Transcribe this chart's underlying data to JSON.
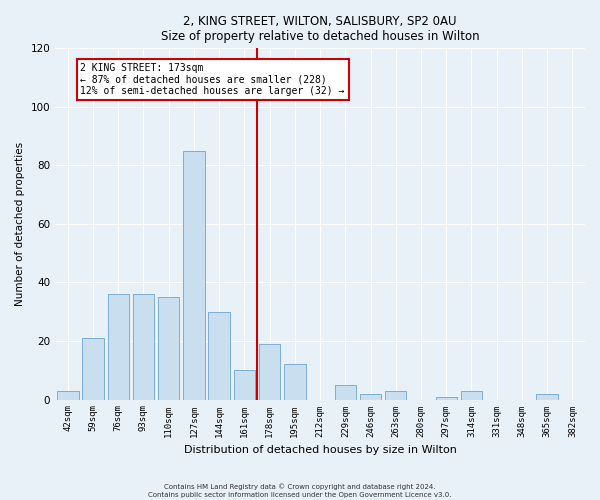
{
  "title1": "2, KING STREET, WILTON, SALISBURY, SP2 0AU",
  "title2": "Size of property relative to detached houses in Wilton",
  "xlabel": "Distribution of detached houses by size in Wilton",
  "ylabel": "Number of detached properties",
  "categories": [
    "42sqm",
    "59sqm",
    "76sqm",
    "93sqm",
    "110sqm",
    "127sqm",
    "144sqm",
    "161sqm",
    "178sqm",
    "195sqm",
    "212sqm",
    "229sqm",
    "246sqm",
    "263sqm",
    "280sqm",
    "297sqm",
    "314sqm",
    "331sqm",
    "348sqm",
    "365sqm",
    "382sqm"
  ],
  "values": [
    3,
    21,
    36,
    36,
    35,
    85,
    30,
    10,
    19,
    12,
    0,
    5,
    2,
    3,
    0,
    1,
    3,
    0,
    0,
    2,
    0
  ],
  "bar_color": "#c9dff0",
  "bar_edgecolor": "#7bafd4",
  "vline_color": "#cc0000",
  "annotation_text": "2 KING STREET: 173sqm\n← 87% of detached houses are smaller (228)\n12% of semi-detached houses are larger (32) →",
  "annotation_box_edgecolor": "#cc0000",
  "ylim": [
    0,
    120
  ],
  "yticks": [
    0,
    20,
    40,
    60,
    80,
    100,
    120
  ],
  "footnote1": "Contains HM Land Registry data © Crown copyright and database right 2024.",
  "footnote2": "Contains public sector information licensed under the Open Government Licence v3.0.",
  "bg_color": "#e8f0f8",
  "plot_bg_color": "#e8f0f8"
}
